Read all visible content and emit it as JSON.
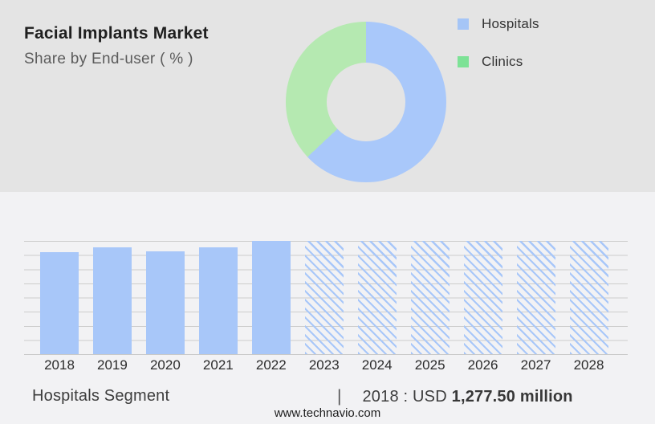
{
  "header": {
    "title": "Facial Implants Market",
    "subtitle": "Share by End-user ( % )"
  },
  "legend": {
    "items": [
      {
        "label": "Hospitals",
        "color": "#a5c5f6"
      },
      {
        "label": "Clinics",
        "color": "#7de296"
      }
    ]
  },
  "chart_data": [
    {
      "type": "pie",
      "subtype": "donut",
      "title": "Share by End-user ( % )",
      "labels": [
        "Hospitals",
        "Clinics"
      ],
      "values": [
        63,
        37
      ],
      "unit": "percent share, estimated from arc angles",
      "colors": [
        "#a9c8fa",
        "#b5e9b1"
      ],
      "legend_position": "right",
      "start_angle_deg": 0,
      "direction": "clockwise"
    },
    {
      "type": "bar",
      "categories": [
        "2018",
        "2019",
        "2020",
        "2021",
        "2022",
        "2023",
        "2024",
        "2025",
        "2026",
        "2027",
        "2028"
      ],
      "bar_height_pct_of_max": [
        90.1,
        94.3,
        90.8,
        94.3,
        100,
        100,
        100,
        100,
        100,
        100,
        100
      ],
      "values_usd_million_estimated": [
        1277.5,
        1335,
        1290,
        1335,
        1420,
        1420,
        1420,
        1420,
        1420,
        1420,
        1420
      ],
      "known_value_label": "2018 : USD 1,277.50 million",
      "forecast_start_year": "2023",
      "forecast_style": "diagonal-hatch",
      "bar_color": "#a8c7f9",
      "gridlines": "horizontal",
      "gridline_count": 9,
      "xlabel": "",
      "ylabel": ""
    }
  ],
  "caption": {
    "segment_label": "Hospitals Segment",
    "separator": "|",
    "value_prefix": "2018 : USD",
    "value_bold": "1,277.50 million"
  },
  "footer": {
    "website": "www.technavio.com"
  },
  "colors": {
    "top_background": "#e4e4e4",
    "bottom_background": "#f2f2f4",
    "gridline": "#cccccc"
  }
}
